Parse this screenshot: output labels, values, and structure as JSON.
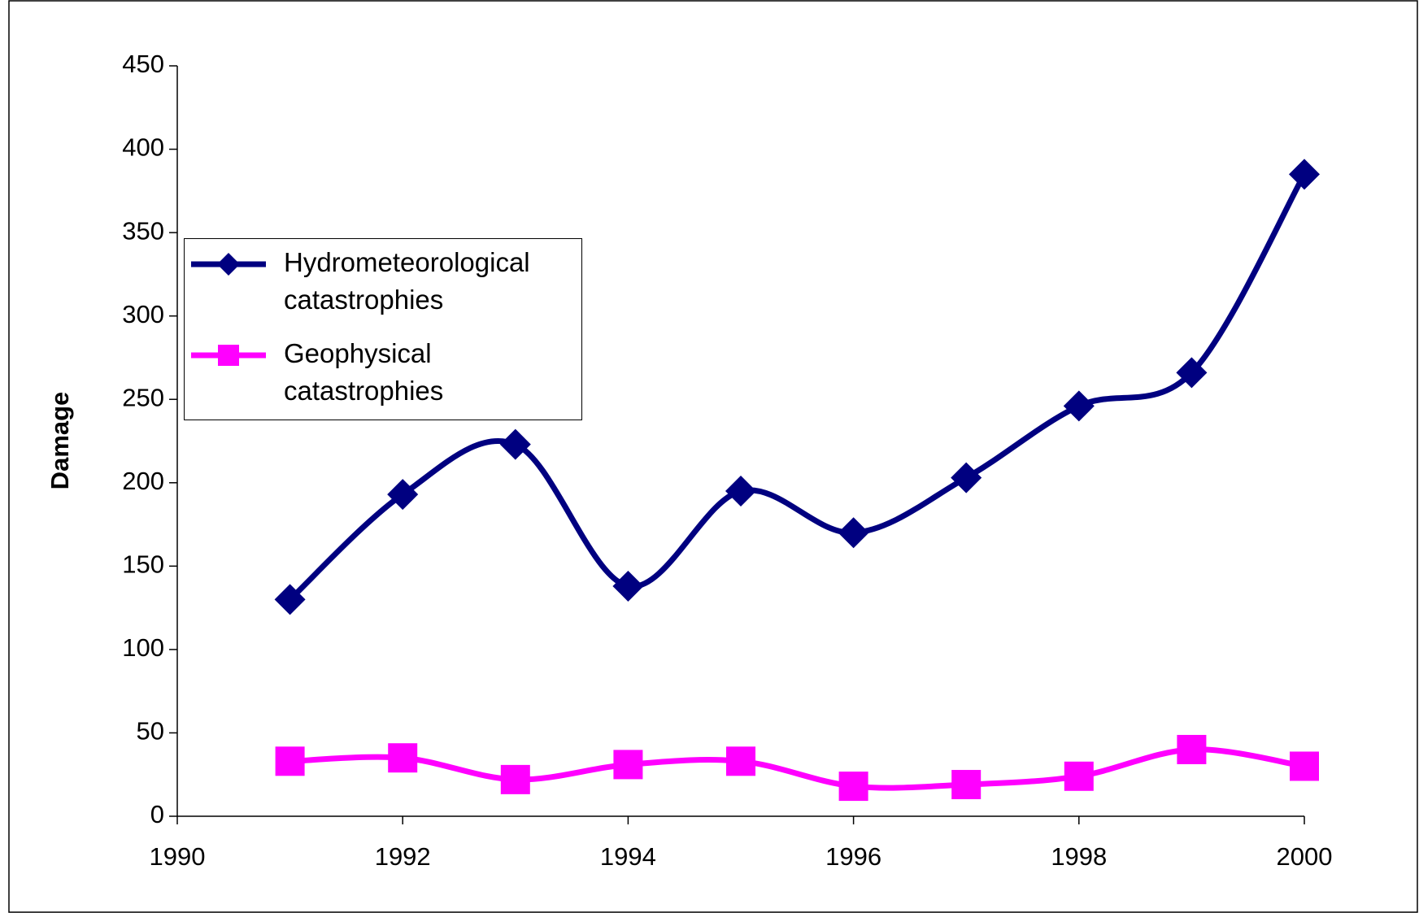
{
  "chart_data": {
    "type": "line",
    "y_label": "Damage",
    "x": [
      1991,
      1992,
      1993,
      1994,
      1995,
      1996,
      1997,
      1998,
      1999,
      2000
    ],
    "series": [
      {
        "name": "Hydrometeorological catastrophies",
        "color": "#000080",
        "marker": "diamond",
        "values": [
          130,
          193,
          223,
          138,
          195,
          170,
          203,
          246,
          266,
          385
        ]
      },
      {
        "name": "Geophysical catastrophies",
        "color": "#ff00ff",
        "marker": "square",
        "values": [
          33,
          35,
          22,
          31,
          33,
          18,
          19,
          24,
          40,
          30
        ]
      }
    ],
    "xlim": [
      1990,
      2000
    ],
    "xticks": [
      1990,
      1992,
      1994,
      1996,
      1998,
      2000
    ],
    "ylim": [
      0,
      450
    ],
    "yticks": [
      0,
      50,
      100,
      150,
      200,
      250,
      300,
      350,
      400,
      450
    ],
    "grid": false,
    "legend": "left"
  }
}
